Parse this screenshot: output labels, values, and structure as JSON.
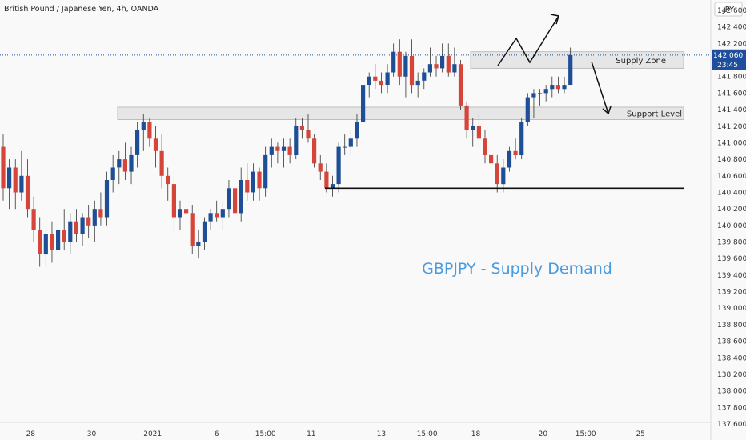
{
  "header": {
    "symbol_title": "British Pound / Japanese Yen, 4h, OANDA",
    "currency": "JPY"
  },
  "price_tag": {
    "price": "142.060",
    "countdown": "23:45"
  },
  "zones": {
    "supply": {
      "label": "Supply Zone",
      "low": 141.9,
      "high": 142.1
    },
    "support": {
      "label": "Support Level",
      "low": 141.28,
      "high": 141.43
    }
  },
  "support_line": {
    "value": 140.45
  },
  "headline": "GBPJPY - Supply Demand",
  "colors": {
    "up": "#1e4f96",
    "down": "#d6453a",
    "background": "#f9f9f9",
    "zone_fill": "#e3e3e3",
    "headline": "#4a9be0",
    "price_tag_bg": "#1f4e9c"
  },
  "chart_data": {
    "type": "candlestick",
    "xlabel": "",
    "ylabel": "",
    "ylim": [
      137.6,
      142.7
    ],
    "y_ticks": [
      "142.600",
      "142.400",
      "142.200",
      "142.000",
      "141.800",
      "141.600",
      "141.400",
      "141.200",
      "141.000",
      "140.800",
      "140.600",
      "140.400",
      "140.200",
      "140.000",
      "139.800",
      "139.600",
      "139.400",
      "139.200",
      "139.000",
      "138.800",
      "138.600",
      "138.400",
      "138.200",
      "138.000",
      "137.800",
      "137.600"
    ],
    "x_ticks": [
      {
        "label": "28",
        "bar": 4.5
      },
      {
        "label": "30",
        "bar": 14.5
      },
      {
        "label": "2021",
        "bar": 24.5
      },
      {
        "label": "6",
        "bar": 35
      },
      {
        "label": "15:00",
        "bar": 43
      },
      {
        "label": "11",
        "bar": 50.5
      },
      {
        "label": "13",
        "bar": 62
      },
      {
        "label": "15:00",
        "bar": 69.5
      },
      {
        "label": "18",
        "bar": 77.5
      },
      {
        "label": "20",
        "bar": 88.5
      },
      {
        "label": "15:00",
        "bar": 95.5
      },
      {
        "label": "25",
        "bar": 104.5
      }
    ],
    "candles": [
      {
        "o": 140.95,
        "h": 141.1,
        "l": 140.3,
        "c": 140.45
      },
      {
        "o": 140.45,
        "h": 140.8,
        "l": 140.2,
        "c": 140.7
      },
      {
        "o": 140.7,
        "h": 140.8,
        "l": 140.2,
        "c": 140.4
      },
      {
        "o": 140.4,
        "h": 140.9,
        "l": 140.3,
        "c": 140.6
      },
      {
        "o": 140.6,
        "h": 140.8,
        "l": 140.1,
        "c": 140.2
      },
      {
        "o": 140.2,
        "h": 140.35,
        "l": 139.8,
        "c": 139.95
      },
      {
        "o": 139.95,
        "h": 140.1,
        "l": 139.5,
        "c": 139.65
      },
      {
        "o": 139.65,
        "h": 139.95,
        "l": 139.5,
        "c": 139.9
      },
      {
        "o": 139.9,
        "h": 140.05,
        "l": 139.55,
        "c": 139.7
      },
      {
        "o": 139.7,
        "h": 140.05,
        "l": 139.6,
        "c": 139.95
      },
      {
        "o": 139.95,
        "h": 140.2,
        "l": 139.7,
        "c": 139.8
      },
      {
        "o": 139.8,
        "h": 140.15,
        "l": 139.65,
        "c": 140.05
      },
      {
        "o": 140.05,
        "h": 140.2,
        "l": 139.8,
        "c": 139.9
      },
      {
        "o": 139.9,
        "h": 140.15,
        "l": 139.75,
        "c": 140.1
      },
      {
        "o": 140.1,
        "h": 140.25,
        "l": 139.85,
        "c": 140
      },
      {
        "o": 140,
        "h": 140.3,
        "l": 139.8,
        "c": 140.2
      },
      {
        "o": 140.2,
        "h": 140.4,
        "l": 140,
        "c": 140.1
      },
      {
        "o": 140.1,
        "h": 140.65,
        "l": 140,
        "c": 140.55
      },
      {
        "o": 140.55,
        "h": 140.85,
        "l": 140.4,
        "c": 140.7
      },
      {
        "o": 140.7,
        "h": 140.9,
        "l": 140.5,
        "c": 140.8
      },
      {
        "o": 140.8,
        "h": 141,
        "l": 140.55,
        "c": 140.65
      },
      {
        "o": 140.65,
        "h": 140.95,
        "l": 140.5,
        "c": 140.85
      },
      {
        "o": 140.85,
        "h": 141.25,
        "l": 140.7,
        "c": 141.15
      },
      {
        "o": 141.15,
        "h": 141.35,
        "l": 140.9,
        "c": 141.25
      },
      {
        "o": 141.25,
        "h": 141.3,
        "l": 140.95,
        "c": 141.05
      },
      {
        "o": 141.05,
        "h": 141.2,
        "l": 140.7,
        "c": 140.9
      },
      {
        "o": 140.9,
        "h": 141.1,
        "l": 140.45,
        "c": 140.6
      },
      {
        "o": 140.6,
        "h": 140.7,
        "l": 140.3,
        "c": 140.5
      },
      {
        "o": 140.5,
        "h": 140.6,
        "l": 139.95,
        "c": 140.1
      },
      {
        "o": 140.1,
        "h": 140.3,
        "l": 139.95,
        "c": 140.2
      },
      {
        "o": 140.2,
        "h": 140.3,
        "l": 140.05,
        "c": 140.15
      },
      {
        "o": 140.15,
        "h": 140.25,
        "l": 139.65,
        "c": 139.75
      },
      {
        "o": 139.75,
        "h": 139.95,
        "l": 139.6,
        "c": 139.8
      },
      {
        "o": 139.8,
        "h": 140.1,
        "l": 139.7,
        "c": 140.05
      },
      {
        "o": 140.05,
        "h": 140.2,
        "l": 139.95,
        "c": 140.15
      },
      {
        "o": 140.15,
        "h": 140.3,
        "l": 140.05,
        "c": 140.1
      },
      {
        "o": 140.1,
        "h": 140.3,
        "l": 139.95,
        "c": 140.2
      },
      {
        "o": 140.2,
        "h": 140.55,
        "l": 140.1,
        "c": 140.45
      },
      {
        "o": 140.45,
        "h": 140.6,
        "l": 140.05,
        "c": 140.15
      },
      {
        "o": 140.15,
        "h": 140.7,
        "l": 140.05,
        "c": 140.55
      },
      {
        "o": 140.55,
        "h": 140.75,
        "l": 140.3,
        "c": 140.4
      },
      {
        "o": 140.4,
        "h": 140.75,
        "l": 140.3,
        "c": 140.65
      },
      {
        "o": 140.65,
        "h": 140.7,
        "l": 140.3,
        "c": 140.45
      },
      {
        "o": 140.45,
        "h": 140.95,
        "l": 140.35,
        "c": 140.85
      },
      {
        "o": 140.85,
        "h": 141.05,
        "l": 140.7,
        "c": 140.95
      },
      {
        "o": 140.95,
        "h": 141,
        "l": 140.75,
        "c": 140.9
      },
      {
        "o": 140.9,
        "h": 141.05,
        "l": 140.7,
        "c": 140.95
      },
      {
        "o": 140.95,
        "h": 141.05,
        "l": 140.75,
        "c": 140.85
      },
      {
        "o": 140.85,
        "h": 141.3,
        "l": 140.8,
        "c": 141.2
      },
      {
        "o": 141.2,
        "h": 141.3,
        "l": 141.05,
        "c": 141.15
      },
      {
        "o": 141.15,
        "h": 141.35,
        "l": 141,
        "c": 141.05
      },
      {
        "o": 141.05,
        "h": 141.1,
        "l": 140.7,
        "c": 140.75
      },
      {
        "o": 140.75,
        "h": 140.85,
        "l": 140.55,
        "c": 140.65
      },
      {
        "o": 140.65,
        "h": 140.75,
        "l": 140.4,
        "c": 140.45
      },
      {
        "o": 140.45,
        "h": 140.6,
        "l": 140.35,
        "c": 140.5
      },
      {
        "o": 140.5,
        "h": 141,
        "l": 140.4,
        "c": 140.95
      },
      {
        "o": 140.95,
        "h": 141.1,
        "l": 140.85,
        "c": 140.95
      },
      {
        "o": 140.95,
        "h": 141.15,
        "l": 140.85,
        "c": 141.05
      },
      {
        "o": 141.05,
        "h": 141.35,
        "l": 140.95,
        "c": 141.25
      },
      {
        "o": 141.25,
        "h": 141.75,
        "l": 141.2,
        "c": 141.7
      },
      {
        "o": 141.7,
        "h": 141.85,
        "l": 141.55,
        "c": 141.8
      },
      {
        "o": 141.8,
        "h": 141.95,
        "l": 141.65,
        "c": 141.75
      },
      {
        "o": 141.75,
        "h": 141.85,
        "l": 141.6,
        "c": 141.7
      },
      {
        "o": 141.7,
        "h": 141.95,
        "l": 141.6,
        "c": 141.85
      },
      {
        "o": 141.85,
        "h": 142.2,
        "l": 141.8,
        "c": 142.1
      },
      {
        "o": 142.1,
        "h": 142.25,
        "l": 141.7,
        "c": 141.8
      },
      {
        "o": 141.8,
        "h": 142.1,
        "l": 141.55,
        "c": 142.05
      },
      {
        "o": 142.05,
        "h": 142.25,
        "l": 141.6,
        "c": 141.7
      },
      {
        "o": 141.7,
        "h": 141.85,
        "l": 141.55,
        "c": 141.75
      },
      {
        "o": 141.75,
        "h": 141.9,
        "l": 141.65,
        "c": 141.85
      },
      {
        "o": 141.85,
        "h": 142.15,
        "l": 141.8,
        "c": 141.95
      },
      {
        "o": 141.95,
        "h": 142.05,
        "l": 141.8,
        "c": 141.9
      },
      {
        "o": 141.9,
        "h": 142.2,
        "l": 141.85,
        "c": 142.05
      },
      {
        "o": 142.05,
        "h": 142.2,
        "l": 141.8,
        "c": 141.85
      },
      {
        "o": 141.85,
        "h": 142.15,
        "l": 141.8,
        "c": 141.95
      },
      {
        "o": 141.95,
        "h": 142,
        "l": 141.4,
        "c": 141.45
      },
      {
        "o": 141.45,
        "h": 141.5,
        "l": 141.05,
        "c": 141.15
      },
      {
        "o": 141.15,
        "h": 141.3,
        "l": 140.95,
        "c": 141.2
      },
      {
        "o": 141.2,
        "h": 141.35,
        "l": 140.95,
        "c": 141.05
      },
      {
        "o": 141.05,
        "h": 141.15,
        "l": 140.75,
        "c": 140.85
      },
      {
        "o": 140.85,
        "h": 140.95,
        "l": 140.65,
        "c": 140.75
      },
      {
        "o": 140.75,
        "h": 140.85,
        "l": 140.4,
        "c": 140.5
      },
      {
        "o": 140.5,
        "h": 140.8,
        "l": 140.4,
        "c": 140.7
      },
      {
        "o": 140.7,
        "h": 140.95,
        "l": 140.65,
        "c": 140.9
      },
      {
        "o": 140.9,
        "h": 141.05,
        "l": 140.8,
        "c": 140.85
      },
      {
        "o": 140.85,
        "h": 141.3,
        "l": 140.8,
        "c": 141.25
      },
      {
        "o": 141.25,
        "h": 141.6,
        "l": 141.2,
        "c": 141.55
      },
      {
        "o": 141.55,
        "h": 141.65,
        "l": 141.3,
        "c": 141.6
      },
      {
        "o": 141.6,
        "h": 141.65,
        "l": 141.45,
        "c": 141.6
      },
      {
        "o": 141.6,
        "h": 141.7,
        "l": 141.5,
        "c": 141.65
      },
      {
        "o": 141.65,
        "h": 141.8,
        "l": 141.55,
        "c": 141.7
      },
      {
        "o": 141.7,
        "h": 141.8,
        "l": 141.6,
        "c": 141.65
      },
      {
        "o": 141.65,
        "h": 141.8,
        "l": 141.6,
        "c": 141.7
      },
      {
        "o": 141.7,
        "h": 142.15,
        "l": 141.7,
        "c": 142.06
      }
    ]
  }
}
